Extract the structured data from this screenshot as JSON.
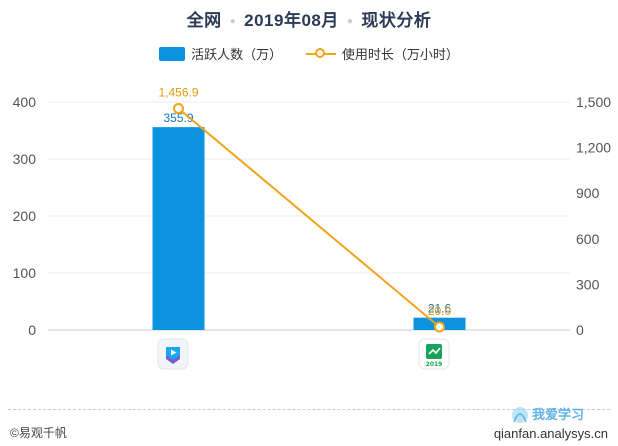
{
  "title": {
    "part1": "全网",
    "part2": "2019年08月",
    "part3": "现状分析"
  },
  "legend": {
    "bar": "活跃人数（万）",
    "line": "使用时长（万小时）"
  },
  "colors": {
    "bar": "#0b93e0",
    "line": "#f2a31b",
    "axis_text": "#555555",
    "grid": "#eeeeee"
  },
  "chart_data": {
    "type": "bar+line",
    "categories": [
      "app-1",
      "app-2"
    ],
    "series": [
      {
        "name": "活跃人数（万）",
        "type": "bar",
        "axis": "left",
        "values": [
          355.9,
          21.6
        ],
        "labels": [
          "355.9",
          "21.6"
        ]
      },
      {
        "name": "使用时长（万小时）",
        "type": "line",
        "axis": "right",
        "values": [
          1456.9,
          20.0
        ],
        "labels": [
          "1,456.9",
          "20.0"
        ]
      }
    ],
    "y_left": {
      "min": 0,
      "max": 400,
      "ticks": [
        0,
        100,
        200,
        300,
        400
      ],
      "tick_labels": [
        "0",
        "100",
        "200",
        "300",
        "400"
      ]
    },
    "y_right": {
      "min": 0,
      "max": 1500,
      "ticks": [
        0,
        300,
        600,
        900,
        1200,
        1500
      ],
      "tick_labels": [
        "0",
        "300",
        "600",
        "900",
        "1,200",
        "1,500"
      ]
    },
    "x_labels_are_icons": [
      "video-app-icon",
      "green-app-icon"
    ],
    "icon_caption_2": "2019"
  },
  "footer": {
    "left": "©易观千帆",
    "right": "qianfan.analysys.cn"
  },
  "watermark": {
    "text": "我爱学习"
  }
}
